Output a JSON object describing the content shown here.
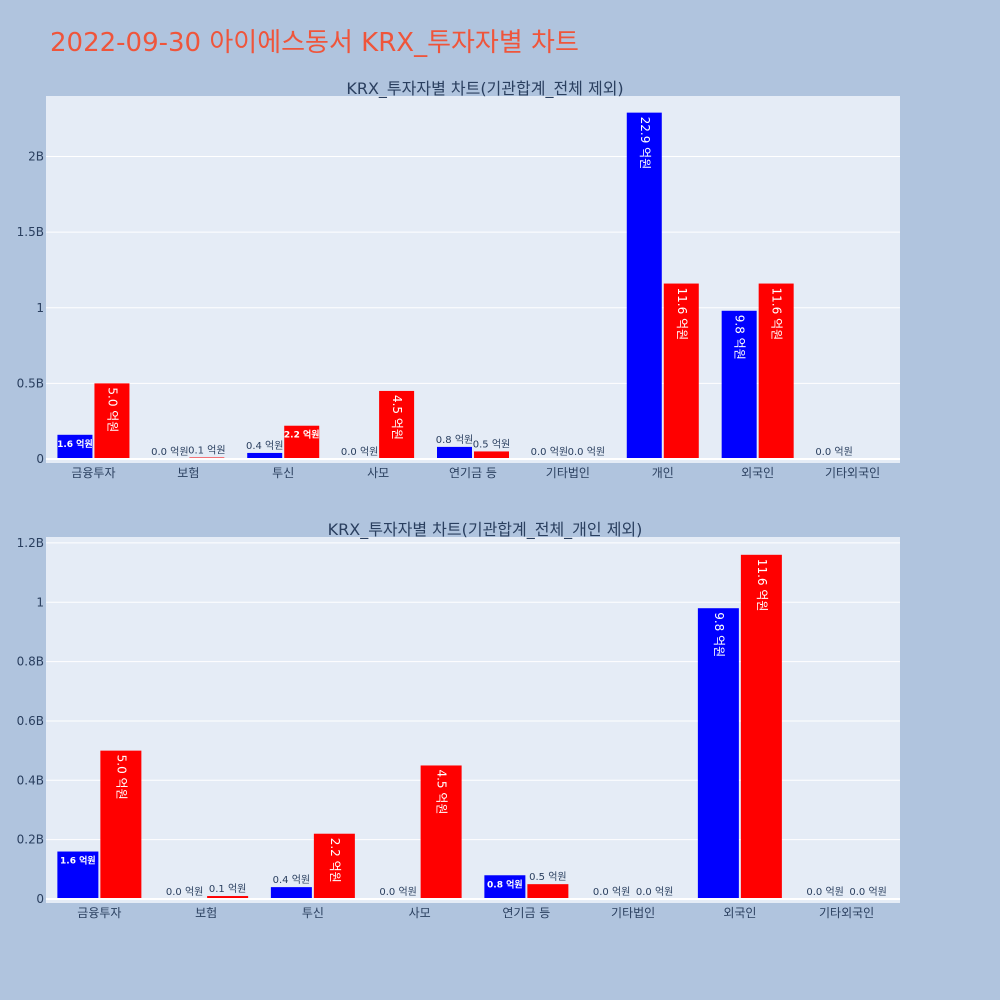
{
  "title": "2022-09-30 아이에스동서 KRX_투자자별 차트",
  "colors": {
    "page_bg": "#b0c4de",
    "plot_bg": "#e5ecf6",
    "buy": "#0000ff",
    "sell": "#ff0000",
    "title": "#ef553b",
    "axis_text": "#2a3f5f"
  },
  "chart_data": [
    {
      "type": "bar",
      "title": "KRX_투자자별 차트(기관합계_전체 제외)",
      "categories": [
        "금융투자",
        "보험",
        "투신",
        "사모",
        "연기금 등",
        "기타법인",
        "개인",
        "외국인",
        "기타외국인"
      ],
      "ylim": [
        0,
        2.4
      ],
      "yticks": [
        0,
        0.5,
        1,
        1.5,
        2
      ],
      "ytick_labels": [
        "0",
        "0.5B",
        "1",
        "1.5B",
        "2B"
      ],
      "grid": true,
      "legend": "none",
      "series": [
        {
          "color": "#0000ff",
          "values": [
            0.16,
            0.0,
            0.04,
            0.0,
            0.08,
            0.0,
            2.29,
            0.98,
            0.0
          ],
          "labels": [
            "1.6 억원",
            "0.0 억원",
            "0.4 억원",
            "0.0 억원",
            "0.8 억원",
            "0.0 억원",
            "22.9 억원",
            "9.8 억원",
            "0.0 억원"
          ]
        },
        {
          "color": "#ff0000",
          "values": [
            0.5,
            0.01,
            0.22,
            0.45,
            0.05,
            0.0,
            1.16,
            1.16,
            null
          ],
          "labels": [
            "5.0 억원",
            "0.1 억원",
            "2.2 억원",
            "4.5 억원",
            "0.5 억원",
            "0.0 억원",
            "11.6 억원",
            "11.6 억원",
            null
          ]
        }
      ]
    },
    {
      "type": "bar",
      "title": "KRX_투자자별 차트(기관합계_전체_개인 제외)",
      "categories": [
        "금융투자",
        "보험",
        "투신",
        "사모",
        "연기금 등",
        "기타법인",
        "외국인",
        "기타외국인"
      ],
      "ylim": [
        0,
        1.22
      ],
      "yticks": [
        0,
        0.2,
        0.4,
        0.6,
        0.8,
        1.0,
        1.2
      ],
      "ytick_labels": [
        "0",
        "0.2B",
        "0.4B",
        "0.6B",
        "0.8B",
        "1",
        "1.2B"
      ],
      "grid": true,
      "legend": "none",
      "series": [
        {
          "color": "#0000ff",
          "values": [
            0.16,
            0.0,
            0.04,
            0.0,
            0.08,
            0.0,
            0.98,
            0.0
          ],
          "labels": [
            "1.6 억원",
            "0.0 억원",
            "0.4 억원",
            "0.0 억원",
            "0.8 억원",
            "0.0 억원",
            "9.8 억원",
            "0.0 억원"
          ]
        },
        {
          "color": "#ff0000",
          "values": [
            0.5,
            0.01,
            0.22,
            0.45,
            0.05,
            0.0,
            1.16,
            0.0
          ],
          "labels": [
            "5.0 억원",
            "0.1 억원",
            "2.2 억원",
            "4.5 억원",
            "0.5 억원",
            "0.0 억원",
            "11.6 억원",
            "0.0 억원"
          ]
        }
      ]
    }
  ]
}
